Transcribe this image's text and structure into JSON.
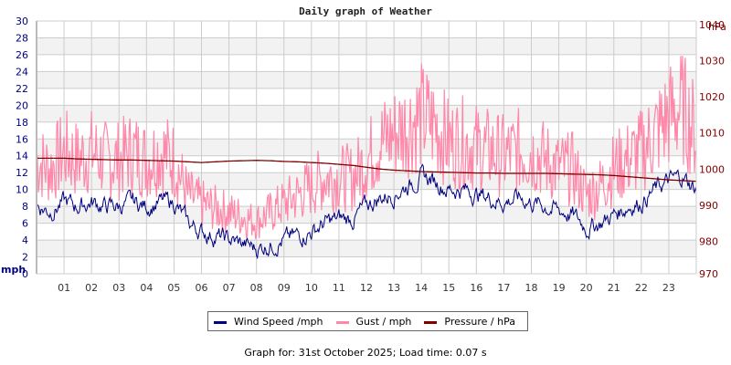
{
  "title": "Daily graph of Weather",
  "legend": {
    "items": [
      {
        "label": "Wind Speed /mph",
        "color": "#000080"
      },
      {
        "label": "Gust / mph",
        "color": "#ff88aa"
      },
      {
        "label": "Pressure / hPa",
        "color": "#800000"
      }
    ]
  },
  "footer": "Graph for: 31st October 2025; Load time: 0.07 s",
  "colors": {
    "left_axis": "#000080",
    "right_axis": "#800000",
    "grid": "#cccccc",
    "band": "#f2f2f2",
    "x_tick_text": "#333333"
  },
  "chart_data": {
    "type": "line",
    "title": "Daily graph of Weather",
    "xlabel": "",
    "ylabel": "mph",
    "ylabel_right": "hPa",
    "ylim": [
      0,
      30
    ],
    "ylim_right": [
      970,
      1040
    ],
    "y_ticks": [
      0,
      2,
      4,
      6,
      8,
      10,
      12,
      14,
      16,
      18,
      20,
      22,
      24,
      26,
      28,
      30
    ],
    "y_ticks_right": [
      970,
      980,
      990,
      1000,
      1010,
      1020,
      1030,
      1040
    ],
    "x_ticks": [
      "01",
      "02",
      "03",
      "04",
      "05",
      "06",
      "07",
      "08",
      "09",
      "10",
      "11",
      "12",
      "13",
      "14",
      "15",
      "16",
      "17",
      "18",
      "19",
      "20",
      "21",
      "22",
      "23"
    ],
    "grid": true,
    "legend_position": "bottom",
    "x": [
      0,
      0.5,
      1,
      1.5,
      2,
      2.5,
      3,
      3.5,
      4,
      4.5,
      5,
      5.5,
      6,
      6.5,
      7,
      7.5,
      8,
      8.5,
      9,
      9.5,
      10,
      10.5,
      11,
      11.5,
      12,
      12.5,
      13,
      13.5,
      14,
      14.5,
      15,
      15.5,
      16,
      16.5,
      17,
      17.5,
      18,
      18.5,
      19,
      19.5,
      20,
      20.5,
      21,
      21.5,
      22,
      22.5,
      23,
      23.5,
      24
    ],
    "series": [
      {
        "name": "Wind Speed /mph",
        "axis": "left",
        "values": [
          8,
          7.5,
          8.5,
          8,
          8.5,
          8,
          8,
          8.5,
          8,
          8.5,
          8.5,
          6,
          5,
          4.5,
          4,
          3.5,
          3,
          3.5,
          4,
          4.5,
          5,
          6,
          6.5,
          6.5,
          8,
          9,
          9.5,
          10.5,
          11.5,
          11,
          10,
          10,
          9.5,
          9,
          8.5,
          9,
          8.5,
          8,
          7.5,
          7,
          5.5,
          6,
          7,
          8,
          8.5,
          10,
          11,
          11.5,
          10
        ]
      },
      {
        "name": "Gust / mph",
        "axis": "left",
        "values": [
          13,
          12,
          14,
          13,
          14,
          13,
          13,
          14,
          13,
          14,
          13,
          9,
          8,
          7.5,
          7,
          6.5,
          6,
          7,
          8,
          9,
          10,
          11,
          11,
          11,
          13,
          15,
          16,
          17,
          18,
          17,
          15,
          15,
          14.5,
          14,
          13.5,
          14,
          14,
          13,
          12,
          12,
          9,
          10,
          12,
          13,
          14,
          16,
          18,
          19,
          16
        ]
      },
      {
        "name": "Pressure / hPa",
        "axis": "right",
        "values": [
          1002,
          1002,
          1002,
          1001.8,
          1001.7,
          1001.6,
          1001.5,
          1001.5,
          1001.4,
          1001.3,
          1001.2,
          1001,
          1000.8,
          1001,
          1001.2,
          1001.3,
          1001.4,
          1001.3,
          1001.1,
          1001,
          1000.8,
          1000.6,
          1000.3,
          1000,
          999.5,
          999,
          998.7,
          998.5,
          998.3,
          998.2,
          998.1,
          998,
          997.9,
          997.9,
          997.8,
          997.8,
          997.8,
          997.8,
          997.7,
          997.6,
          997.5,
          997.4,
          997.2,
          996.9,
          996.6,
          996.3,
          996,
          995.8,
          995.6
        ]
      }
    ],
    "gust_peak_approx": 26.5
  }
}
